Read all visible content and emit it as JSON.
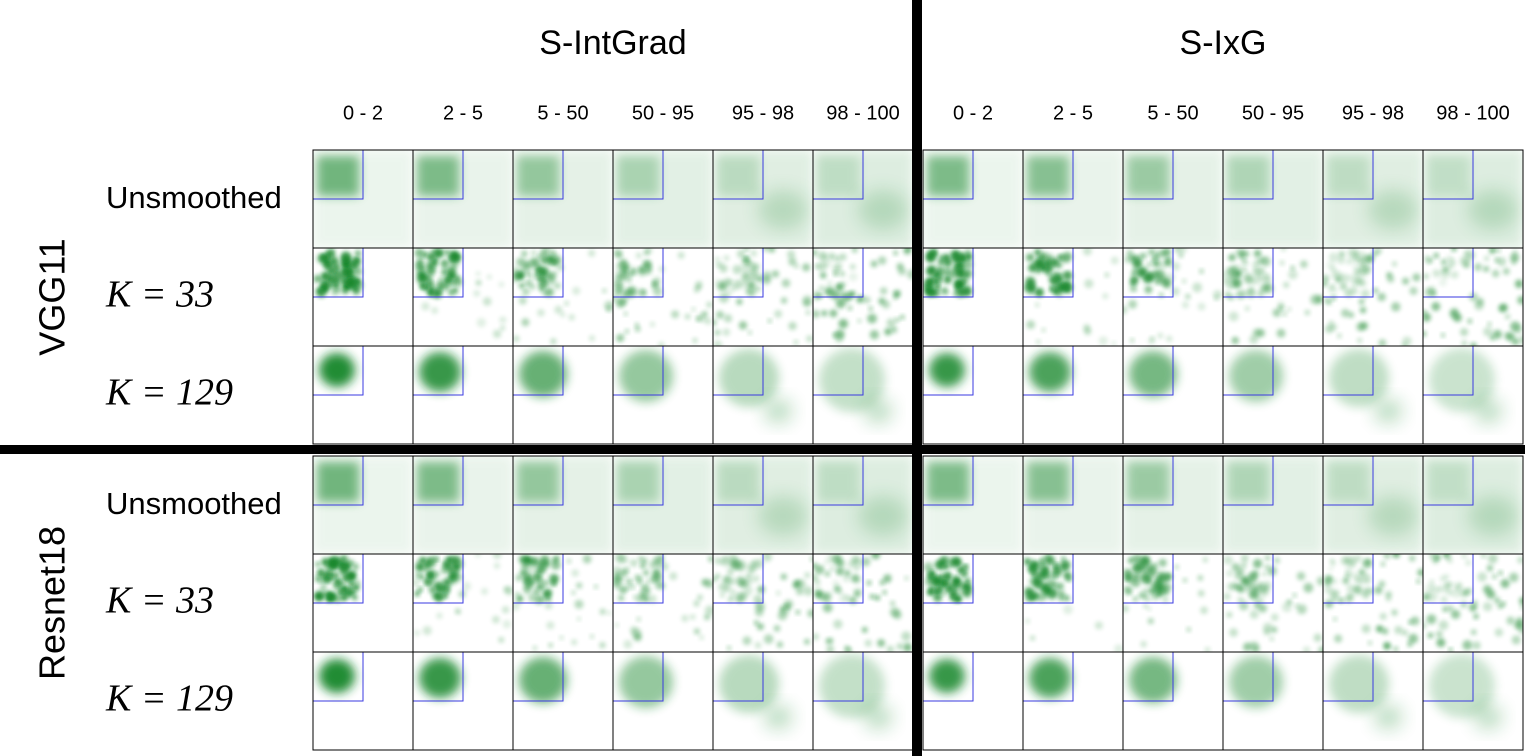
{
  "methods": [
    {
      "title": "S-IntGrad",
      "columns": [
        "0 - 2",
        "2 - 5",
        "5 - 50",
        "50 - 95",
        "95 - 98",
        "98 - 100"
      ]
    },
    {
      "title": "S-IxG",
      "columns": [
        "0 - 2",
        "2 - 5",
        "5 - 50",
        "50 - 95",
        "95 - 98",
        "98 - 100"
      ]
    }
  ],
  "models": [
    {
      "name": "VGG11",
      "rows": [
        "Unsmoothed",
        "K = 33",
        "K = 129"
      ]
    },
    {
      "name": "Resnet18",
      "rows": [
        "Unsmoothed",
        "K = 33",
        "K = 129"
      ]
    }
  ]
}
